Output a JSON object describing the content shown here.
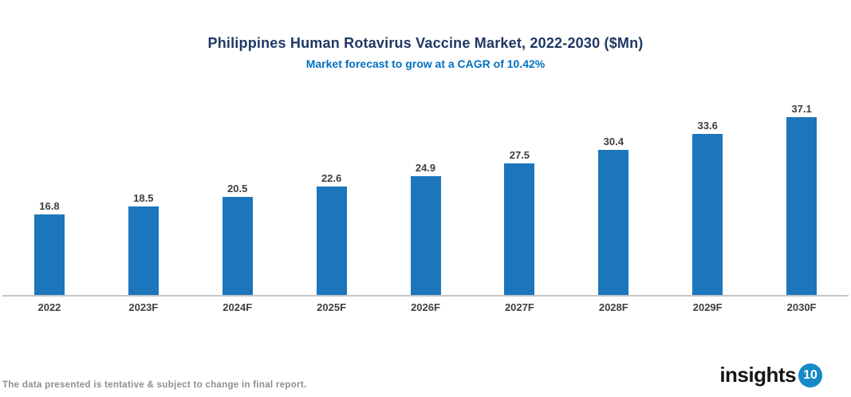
{
  "title": "Philippines Human Rotavirus Vaccine Market, 2022-2030 ($Mn)",
  "subtitle": "Market forecast to grow at a CAGR of 10.42%",
  "footnote": "The data presented is tentative & subject to change in final report.",
  "logo": {
    "text": "insights",
    "badge": "10"
  },
  "colors": {
    "bar": "#1B76BC",
    "title": "#1F3864",
    "subtitle": "#0070C0",
    "axis_line": "#C6C6C6",
    "data_label": "#3F3F3F",
    "footnote": "#8E8E8E",
    "logo_badge": "#1789C9"
  },
  "chart_data": {
    "type": "bar",
    "categories": [
      "2022",
      "2023F",
      "2024F",
      "2025F",
      "2026F",
      "2027F",
      "2028F",
      "2029F",
      "2030F"
    ],
    "values": [
      16.8,
      18.5,
      20.5,
      22.6,
      24.9,
      27.5,
      30.4,
      33.6,
      37.1
    ],
    "title": "Philippines Human Rotavirus Vaccine Market, 2022-2030 ($Mn)",
    "subtitle": "Market forecast to grow at a CAGR of 10.42%",
    "xlabel": "",
    "ylabel": "",
    "ylim": [
      0,
      40
    ],
    "grid": false,
    "legend": false,
    "data_labels": true,
    "bar_color": "#1B76BC"
  }
}
